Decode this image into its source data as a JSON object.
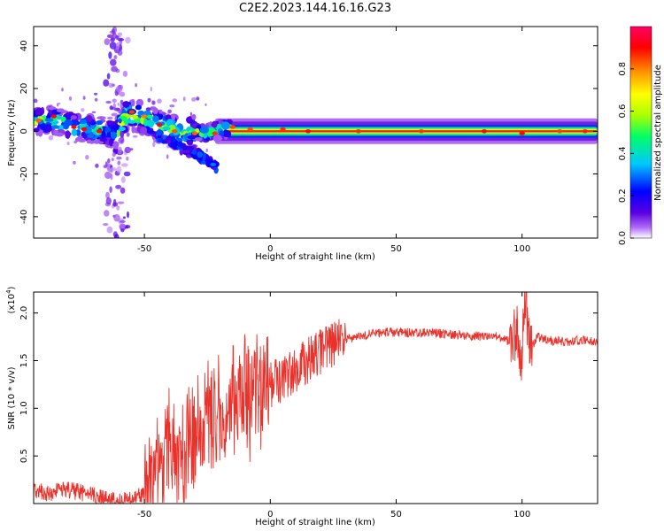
{
  "title": "C2E2.2023.144.16.16.G23",
  "colors": {
    "snr_line": "#e8322b",
    "frame": "#000000"
  },
  "chart_data": [
    {
      "type": "heatmap",
      "title": "C2E2.2023.144.16.16.G23",
      "xlabel": "Height of straight line (km)",
      "ylabel": "Frequency (Hz)",
      "xlim": [
        -94,
        130
      ],
      "ylim": [
        -50,
        49
      ],
      "xticks": [
        -50,
        0,
        50,
        100
      ],
      "yticks": [
        -40,
        -20,
        0,
        20,
        40
      ],
      "colorbar": {
        "label": "Normalized spectral amplitude",
        "range": [
          0,
          1
        ],
        "ticks": [
          "0.0",
          "0.2",
          "0.4",
          "0.6",
          "0.8"
        ],
        "colormap": [
          "#ffffff",
          "#b06bf5",
          "#5a00e0",
          "#0000ff",
          "#00c8ff",
          "#00ff66",
          "#aaff00",
          "#ffff00",
          "#ff9900",
          "#ff0000",
          "#ff0066"
        ]
      },
      "ridge": [
        {
          "x": -94,
          "f": 5
        },
        {
          "x": -85,
          "f": 5
        },
        {
          "x": -78,
          "f": 2
        },
        {
          "x": -72,
          "f": 1
        },
        {
          "x": -65,
          "f": 0
        },
        {
          "x": -61,
          "f": -1
        },
        {
          "x": -57,
          "f": 8
        },
        {
          "x": -50,
          "f": 6
        },
        {
          "x": -45,
          "f": 3
        },
        {
          "x": -40,
          "f": 1
        },
        {
          "x": -35,
          "f": -1
        },
        {
          "x": -30,
          "f": 0
        },
        {
          "x": -25,
          "f": -1
        },
        {
          "x": -20,
          "f": 1
        },
        {
          "x": -12,
          "f": 2
        },
        {
          "x": -5,
          "f": 1
        },
        {
          "x": 0,
          "f": 0
        },
        {
          "x": 5,
          "f": 1
        },
        {
          "x": 10,
          "f": 0
        },
        {
          "x": 130,
          "f": 0
        }
      ],
      "branch": [
        {
          "x": -45,
          "f": -2
        },
        {
          "x": -40,
          "f": -4
        },
        {
          "x": -35,
          "f": -8
        },
        {
          "x": -30,
          "f": -10
        },
        {
          "x": -25,
          "f": -14
        },
        {
          "x": -21,
          "f": -17
        }
      ],
      "scatter_column": {
        "x_center": -61,
        "f_range": [
          -50,
          49
        ]
      }
    },
    {
      "type": "line",
      "xlabel": "Height of straight line (km)",
      "ylabel": "SNR (10 * v/v)",
      "y_multiplier": "(x10",
      "y_multiplier_exp": "4",
      "y_multiplier_close": ")",
      "xlim": [
        -94,
        130
      ],
      "ylim": [
        0,
        2.22
      ],
      "xticks": [
        -50,
        0,
        50,
        100
      ],
      "yticks": [
        0.5,
        1.0,
        1.5,
        2.0
      ],
      "ytick_labels": [
        "0.5",
        "1.0",
        "1.5",
        "2.0"
      ],
      "series": [
        {
          "x": [
            -94,
            -88,
            -82,
            -76,
            -70,
            -65,
            -60,
            -55,
            -50,
            -47,
            -44,
            -40,
            -36,
            -32,
            -28,
            -24,
            -20,
            -16,
            -12,
            -8,
            -4,
            0,
            5,
            10,
            15,
            20,
            25,
            30,
            35,
            40,
            45,
            50,
            60,
            70,
            80,
            90,
            95,
            98,
            100,
            101,
            103,
            106,
            110,
            115,
            120,
            125,
            130
          ],
          "y": [
            0.15,
            0.1,
            0.15,
            0.12,
            0.08,
            0.04,
            0.02,
            0.04,
            0.12,
            0.3,
            0.45,
            0.55,
            0.55,
            0.65,
            0.75,
            0.85,
            0.95,
            1.05,
            1.15,
            1.15,
            1.2,
            1.25,
            1.3,
            1.4,
            1.5,
            1.6,
            1.68,
            1.72,
            1.76,
            1.78,
            1.8,
            1.8,
            1.79,
            1.78,
            1.76,
            1.75,
            1.7,
            1.8,
            1.5,
            2.22,
            1.6,
            1.75,
            1.72,
            1.7,
            1.7,
            1.72,
            1.68
          ]
        }
      ]
    }
  ]
}
